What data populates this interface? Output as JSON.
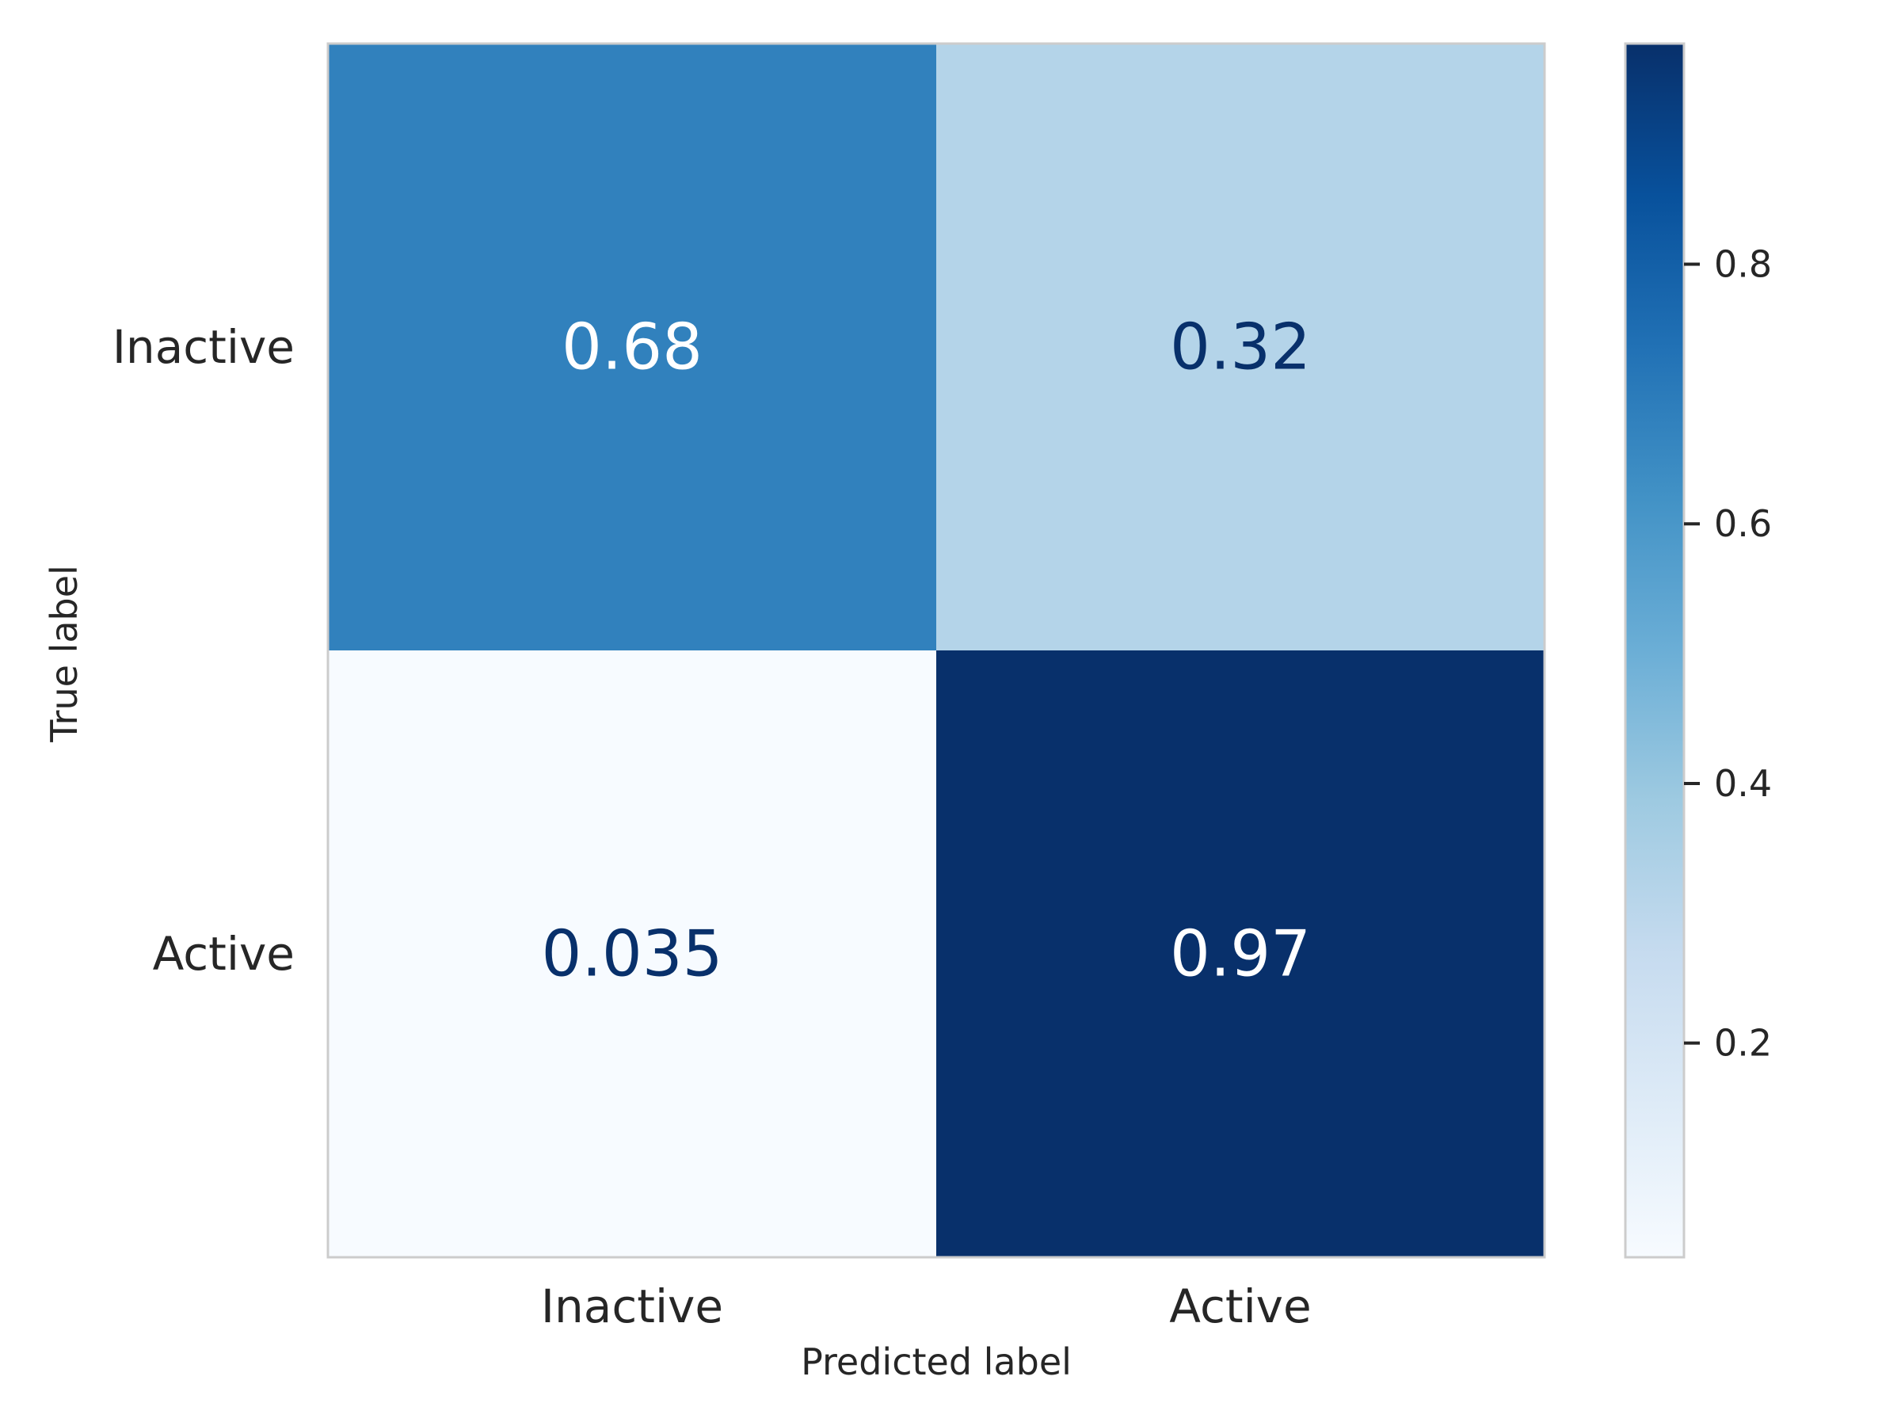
{
  "chart_data": {
    "type": "heatmap",
    "xlabel": "Predicted label",
    "ylabel": "True label",
    "x_categories": [
      "Inactive",
      "Active"
    ],
    "y_categories": [
      "Inactive",
      "Active"
    ],
    "values": [
      [
        0.68,
        0.32
      ],
      [
        0.035,
        0.97
      ]
    ],
    "cell_labels": [
      [
        "0.68",
        "0.32"
      ],
      [
        "0.035",
        "0.97"
      ]
    ],
    "colormap": "Blues",
    "colorbar": {
      "range": [
        0.035,
        0.97
      ],
      "ticks": [
        0.2,
        0.4,
        0.6,
        0.8
      ],
      "tick_labels": [
        "0.2",
        "0.4",
        "0.6",
        "0.8"
      ]
    },
    "grid": false,
    "colors": {
      "low": "#f7fbff",
      "high": "#08306b",
      "text_light": "#ffffff",
      "text_dark": "#08306b",
      "frame": "#cccccc"
    }
  }
}
